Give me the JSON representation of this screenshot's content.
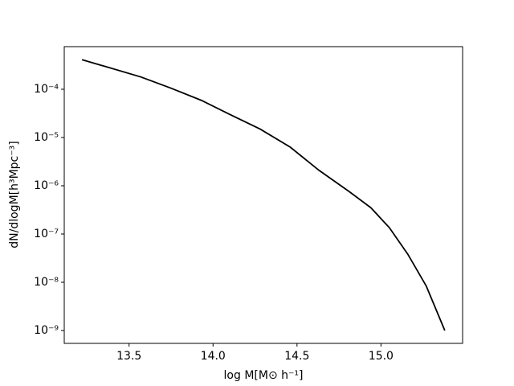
{
  "chart_data": {
    "type": "line",
    "xlabel": "log M[M⊙ h⁻¹]",
    "ylabel": "dN/dlogM[h³Mpc⁻³]",
    "yscale": "log",
    "x": [
      13.22,
      13.57,
      13.75,
      13.93,
      14.1,
      14.28,
      14.46,
      14.63,
      14.81,
      14.94,
      15.05,
      15.16,
      15.27,
      15.38
    ],
    "series": [
      {
        "color": "#000000",
        "values": [
          0.00041,
          0.00018,
          0.000105,
          5.9e-05,
          3e-05,
          1.5e-05,
          6.3e-06,
          2.1e-06,
          7.6e-07,
          3.5e-07,
          1.35e-07,
          3.8e-08,
          8.3e-09,
          1e-09
        ]
      }
    ],
    "xlim": [
      13.114,
      15.486
    ],
    "ylim": [
      0.000764,
      5.41e-10
    ],
    "xticks": [
      13.5,
      {
        "value": 14,
        "label": "14.0"
      },
      14.5,
      {
        "value": 15,
        "label": "15.0"
      }
    ],
    "yticks": [
      {
        "value": 0.0001,
        "label": "10⁻⁴"
      },
      {
        "value": 1e-05,
        "label": "10⁻⁵"
      },
      {
        "value": 1e-06,
        "label": "10⁻⁶"
      },
      {
        "value": 1e-07,
        "label": "10⁻⁷"
      },
      {
        "value": 1e-08,
        "label": "10⁻⁸"
      },
      {
        "value": 1e-09,
        "label": "10⁻⁹"
      }
    ],
    "grid": false
  }
}
